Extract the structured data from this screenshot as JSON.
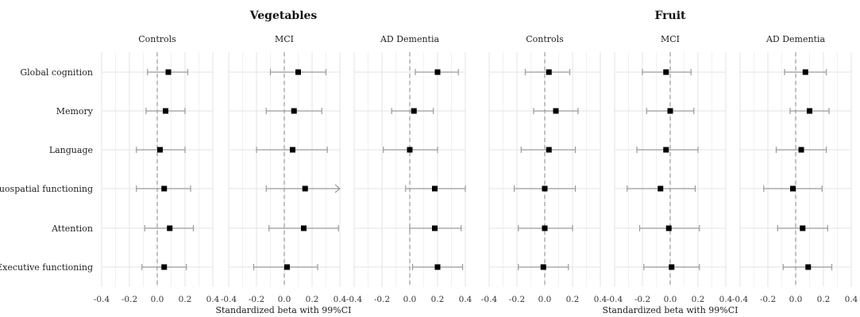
{
  "chart_data": {
    "type": "forest",
    "groups": [
      {
        "title": "Vegetables",
        "xlabel": "Standardized beta with 99%CI",
        "panels": [
          {
            "name": "Controls",
            "points": [
              {
                "beta": 0.08,
                "lo": -0.07,
                "hi": 0.22
              },
              {
                "beta": 0.06,
                "lo": -0.08,
                "hi": 0.2
              },
              {
                "beta": 0.02,
                "lo": -0.15,
                "hi": 0.2
              },
              {
                "beta": 0.05,
                "lo": -0.15,
                "hi": 0.24
              },
              {
                "beta": 0.09,
                "lo": -0.09,
                "hi": 0.26
              },
              {
                "beta": 0.05,
                "lo": -0.11,
                "hi": 0.21
              }
            ]
          },
          {
            "name": "MCI",
            "points": [
              {
                "beta": 0.1,
                "lo": -0.1,
                "hi": 0.3
              },
              {
                "beta": 0.07,
                "lo": -0.13,
                "hi": 0.27
              },
              {
                "beta": 0.06,
                "lo": -0.2,
                "hi": 0.31
              },
              {
                "beta": 0.15,
                "lo": -0.13,
                "hi": 0.4,
                "hi_arrow": true
              },
              {
                "beta": 0.14,
                "lo": -0.11,
                "hi": 0.39
              },
              {
                "beta": 0.02,
                "lo": -0.22,
                "hi": 0.24
              }
            ]
          },
          {
            "name": "AD Dementia",
            "points": [
              {
                "beta": 0.2,
                "lo": 0.04,
                "hi": 0.35
              },
              {
                "beta": 0.03,
                "lo": -0.13,
                "hi": 0.17
              },
              {
                "beta": 0.0,
                "lo": -0.19,
                "hi": 0.2
              },
              {
                "beta": 0.18,
                "lo": -0.03,
                "hi": 0.4
              },
              {
                "beta": 0.18,
                "lo": 0.0,
                "hi": 0.37
              },
              {
                "beta": 0.2,
                "lo": 0.02,
                "hi": 0.38
              }
            ]
          }
        ]
      },
      {
        "title": "Fruit",
        "xlabel": "Standardized beta with 99%CI",
        "panels": [
          {
            "name": "Controls",
            "points": [
              {
                "beta": 0.03,
                "lo": -0.14,
                "hi": 0.18
              },
              {
                "beta": 0.08,
                "lo": -0.08,
                "hi": 0.24
              },
              {
                "beta": 0.03,
                "lo": -0.17,
                "hi": 0.22
              },
              {
                "beta": 0.0,
                "lo": -0.22,
                "hi": 0.22
              },
              {
                "beta": 0.0,
                "lo": -0.19,
                "hi": 0.2
              },
              {
                "beta": -0.01,
                "lo": -0.19,
                "hi": 0.17
              }
            ]
          },
          {
            "name": "MCI",
            "points": [
              {
                "beta": -0.03,
                "lo": -0.2,
                "hi": 0.15
              },
              {
                "beta": 0.0,
                "lo": -0.17,
                "hi": 0.17
              },
              {
                "beta": -0.03,
                "lo": -0.24,
                "hi": 0.2
              },
              {
                "beta": -0.07,
                "lo": -0.31,
                "hi": 0.18
              },
              {
                "beta": -0.01,
                "lo": -0.22,
                "hi": 0.21
              },
              {
                "beta": 0.01,
                "lo": -0.19,
                "hi": 0.21
              }
            ]
          },
          {
            "name": "AD Dementia",
            "points": [
              {
                "beta": 0.07,
                "lo": -0.08,
                "hi": 0.22
              },
              {
                "beta": 0.1,
                "lo": -0.04,
                "hi": 0.24
              },
              {
                "beta": 0.04,
                "lo": -0.14,
                "hi": 0.22
              },
              {
                "beta": -0.02,
                "lo": -0.23,
                "hi": 0.19
              },
              {
                "beta": 0.05,
                "lo": -0.13,
                "hi": 0.23
              },
              {
                "beta": 0.09,
                "lo": -0.09,
                "hi": 0.26
              }
            ]
          }
        ]
      }
    ],
    "outcomes": [
      "Global cognition",
      "Memory",
      "Language",
      "Visuospatial functioning",
      "Attention",
      "Executive functioning"
    ],
    "xlim": [
      -0.4,
      0.4
    ],
    "xticks": [
      -0.4,
      -0.2,
      0.0,
      0.2,
      0.4
    ],
    "xtick_labels": [
      "-0.4",
      "-0.2",
      "0.0",
      "0.2",
      "0.4"
    ],
    "reference_line": 0,
    "grid": true,
    "colors": {
      "point": "#000000",
      "ci": "#9a9a9a",
      "grid_major": "#e3e3e3",
      "grid_minor": "#f1f1f1",
      "ref": "#9a9a9a"
    }
  }
}
